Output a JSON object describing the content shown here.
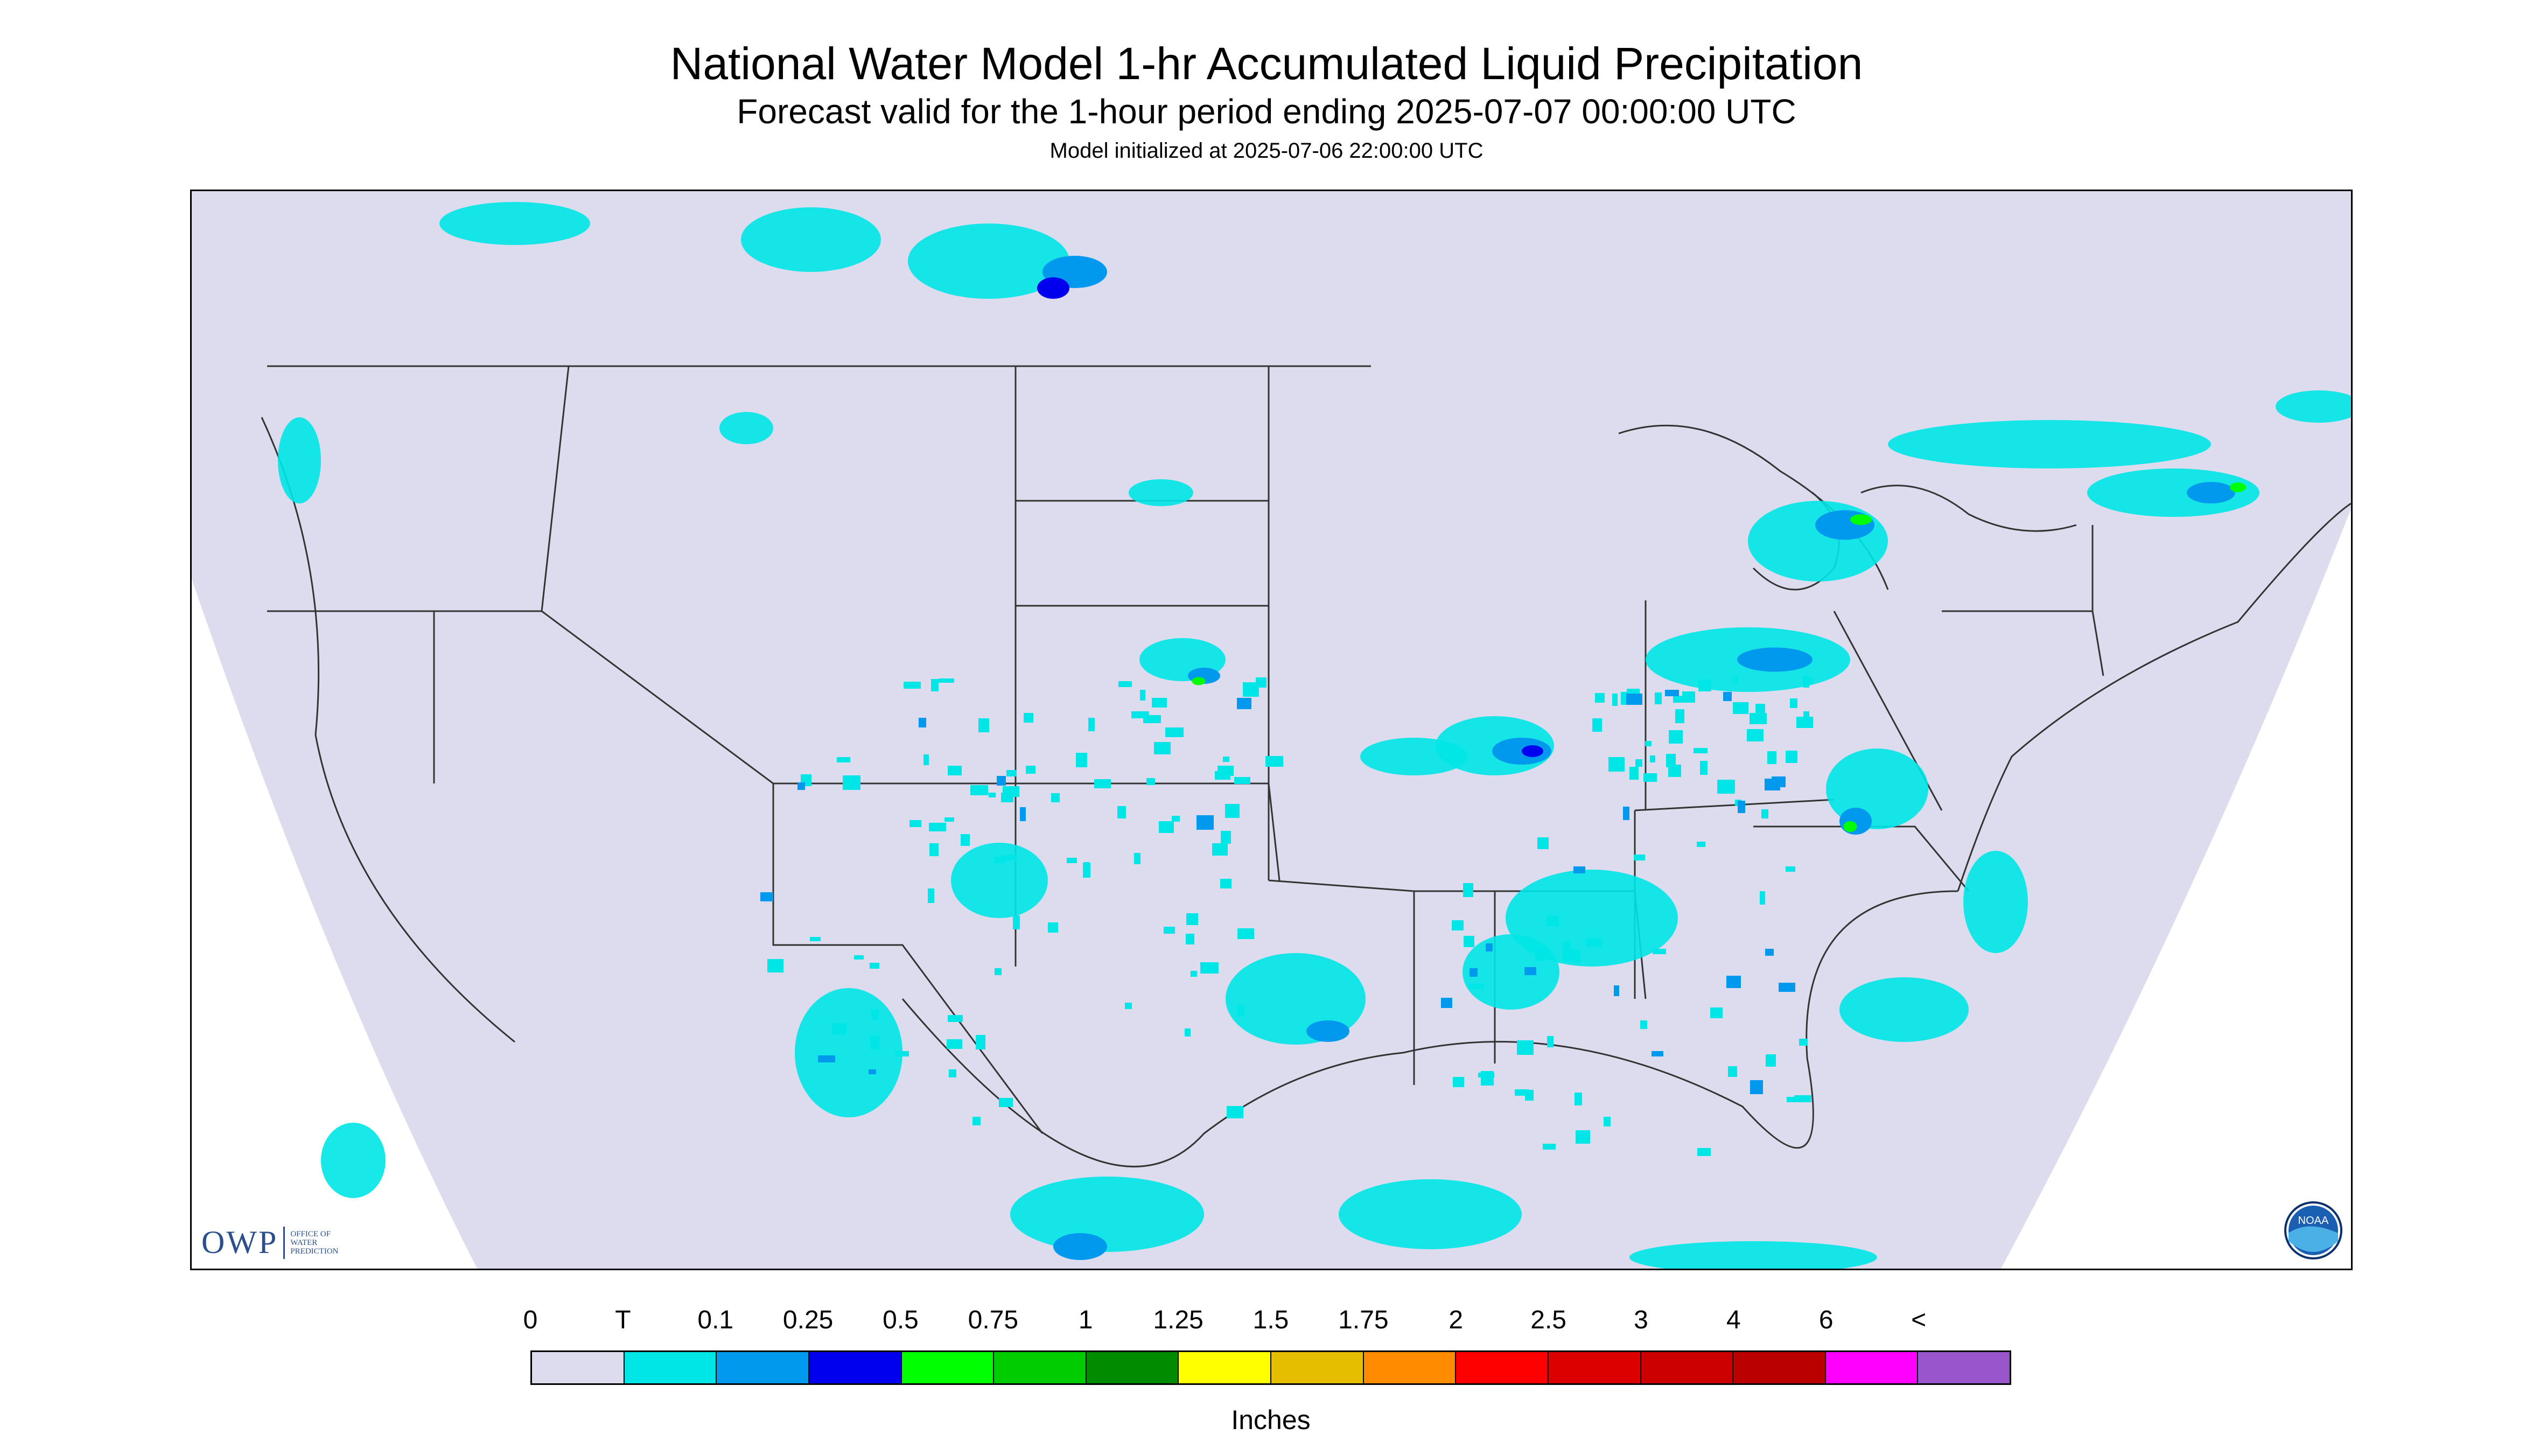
{
  "title": "National Water Model 1-hr Accumulated Liquid Precipitation",
  "subtitle": "Forecast valid for the 1-hour period ending 2025-07-07 00:00:00 UTC",
  "init_line": "Model initialized at 2025-07-06 22:00:00 UTC",
  "map": {
    "background_color": "#dcdcee",
    "outside_color": "#ffffff",
    "boundary_color": "#333333",
    "logo_left": {
      "letters": "OWP",
      "name_lines": [
        "OFFICE OF",
        "WATER",
        "PREDICTION"
      ]
    },
    "logo_right": {
      "text": "NOAA"
    }
  },
  "legend": {
    "tick_labels": [
      "0",
      "T",
      "0.1",
      "0.25",
      "0.5",
      "0.75",
      "1",
      "1.25",
      "1.5",
      "1.75",
      "2",
      "2.5",
      "3",
      "4",
      "6",
      "<"
    ],
    "colors": [
      "#dcdcee",
      "#00e5e5",
      "#0099ee",
      "#0000ee",
      "#00ff00",
      "#00cc00",
      "#008b00",
      "#ffff00",
      "#e6be00",
      "#ff8c00",
      "#ff0000",
      "#dd0000",
      "#cc0000",
      "#bb0000",
      "#ff00ff",
      "#9955cc"
    ],
    "units": "Inches"
  }
}
